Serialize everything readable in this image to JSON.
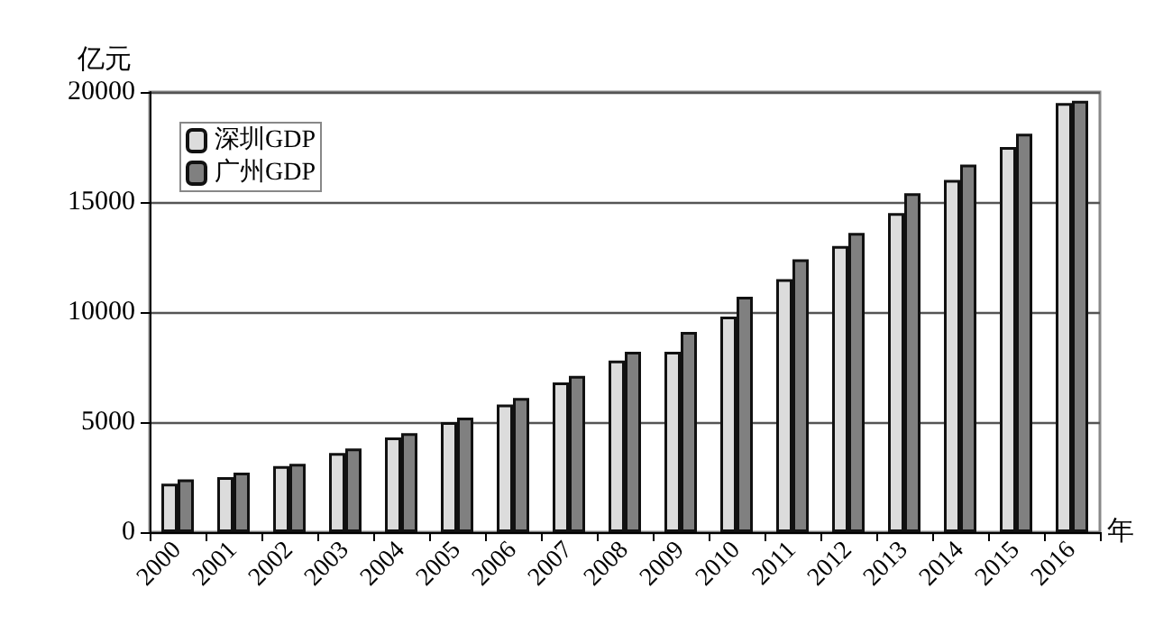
{
  "chart_data": {
    "type": "bar",
    "ylabel": "亿元",
    "xlabel": "年",
    "categories": [
      "2000",
      "2001",
      "2002",
      "2003",
      "2004",
      "2005",
      "2006",
      "2007",
      "2008",
      "2009",
      "2010",
      "2011",
      "2012",
      "2013",
      "2014",
      "2015",
      "2016"
    ],
    "series": [
      {
        "name": "深圳GDP",
        "color": "#dcdcdc",
        "values": [
          2200,
          2500,
          3000,
          3600,
          4300,
          5000,
          5800,
          6800,
          7800,
          8200,
          9800,
          11500,
          13000,
          14500,
          16000,
          17500,
          19500
        ]
      },
      {
        "name": "广州GDP",
        "color": "#808080",
        "values": [
          2400,
          2700,
          3100,
          3800,
          4500,
          5200,
          6100,
          7100,
          8200,
          9100,
          10700,
          12400,
          13600,
          15400,
          16700,
          18100,
          19600
        ]
      }
    ],
    "ylim": [
      0,
      20000
    ],
    "yticks": [
      0,
      5000,
      10000,
      15000,
      20000
    ],
    "grid": "y",
    "legend": "top left"
  }
}
